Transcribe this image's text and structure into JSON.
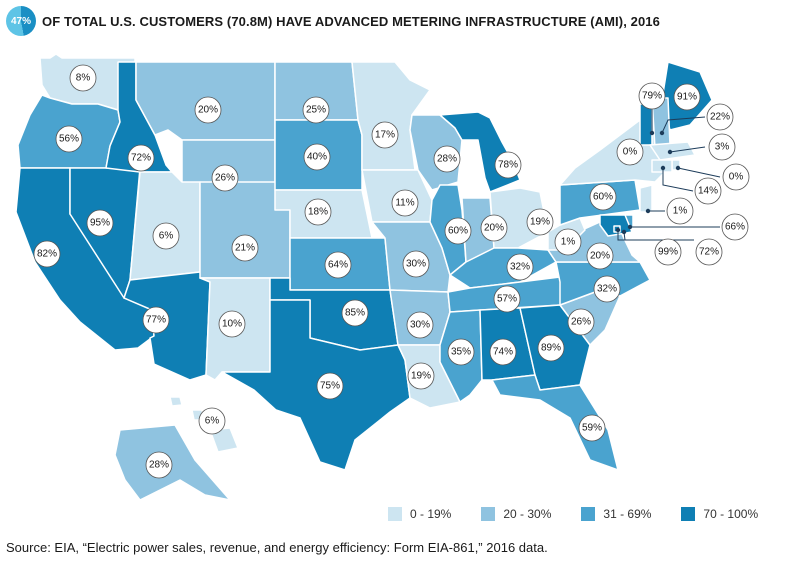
{
  "header": {
    "badge_value": "47%",
    "title": "OF TOTAL U.S. CUSTOMERS (70.8M) HAVE ADVANCED METERING INFRASTRUCTURE (AMI), 2016"
  },
  "colors": {
    "bin_0_19": "#cde5f1",
    "bin_20_30": "#8fc3e0",
    "bin_31_69": "#4aa3cf",
    "bin_70_100": "#0f7fb4",
    "border": "#ffffff",
    "bubble_stroke": "#555555"
  },
  "legend": [
    {
      "label": "0 - 19%",
      "color": "#cde5f1"
    },
    {
      "label": "20 - 30%",
      "color": "#8fc3e0"
    },
    {
      "label": "31 - 69%",
      "color": "#4aa3cf"
    },
    {
      "label": "70 - 100%",
      "color": "#0f7fb4"
    }
  ],
  "source": "Source: EIA, “Electric power sales, revenue, and energy efficiency: Form EIA-861,” 2016 data.",
  "states": [
    {
      "id": "WA",
      "value": 8,
      "label": "8%"
    },
    {
      "id": "OR",
      "value": 56,
      "label": "56%"
    },
    {
      "id": "CA",
      "value": 82,
      "label": "82%"
    },
    {
      "id": "NV",
      "value": 95,
      "label": "95%"
    },
    {
      "id": "ID",
      "value": 72,
      "label": "72%"
    },
    {
      "id": "MT",
      "value": 20,
      "label": "20%"
    },
    {
      "id": "WY",
      "value": 26,
      "label": "26%"
    },
    {
      "id": "UT",
      "value": 6,
      "label": "6%"
    },
    {
      "id": "AZ",
      "value": 77,
      "label": "77%"
    },
    {
      "id": "CO",
      "value": 21,
      "label": "21%"
    },
    {
      "id": "NM",
      "value": 10,
      "label": "10%"
    },
    {
      "id": "ND",
      "value": 25,
      "label": "25%"
    },
    {
      "id": "SD",
      "value": 40,
      "label": "40%"
    },
    {
      "id": "NE",
      "value": 18,
      "label": "18%"
    },
    {
      "id": "KS",
      "value": 64,
      "label": "64%"
    },
    {
      "id": "OK",
      "value": 85,
      "label": "85%"
    },
    {
      "id": "TX",
      "value": 75,
      "label": "75%"
    },
    {
      "id": "MN",
      "value": 17,
      "label": "17%"
    },
    {
      "id": "IA",
      "value": 11,
      "label": "11%"
    },
    {
      "id": "MO",
      "value": 30,
      "label": "30%"
    },
    {
      "id": "AR",
      "value": 30,
      "label": "30%"
    },
    {
      "id": "LA",
      "value": 19,
      "label": "19%"
    },
    {
      "id": "WI",
      "value": 28,
      "label": "28%"
    },
    {
      "id": "IL",
      "value": 60,
      "label": "60%"
    },
    {
      "id": "MI",
      "value": 78,
      "label": "78%"
    },
    {
      "id": "IN",
      "value": 20,
      "label": "20%"
    },
    {
      "id": "OH",
      "value": 19,
      "label": "19%"
    },
    {
      "id": "KY",
      "value": 32,
      "label": "32%"
    },
    {
      "id": "TN",
      "value": 57,
      "label": "57%"
    },
    {
      "id": "MS",
      "value": 35,
      "label": "35%"
    },
    {
      "id": "AL",
      "value": 74,
      "label": "74%"
    },
    {
      "id": "GA",
      "value": 89,
      "label": "89%"
    },
    {
      "id": "FL",
      "value": 59,
      "label": "59%"
    },
    {
      "id": "SC",
      "value": 26,
      "label": "26%"
    },
    {
      "id": "NC",
      "value": 32,
      "label": "32%"
    },
    {
      "id": "VA",
      "value": 20,
      "label": "20%"
    },
    {
      "id": "WV",
      "value": 1,
      "label": "1%"
    },
    {
      "id": "PA",
      "value": 60,
      "label": "60%"
    },
    {
      "id": "NY",
      "value": 0,
      "label": "0%"
    },
    {
      "id": "VT",
      "value": 79,
      "label": "79%"
    },
    {
      "id": "ME",
      "value": 91,
      "label": "91%"
    },
    {
      "id": "NH",
      "value": 22,
      "label": "22%"
    },
    {
      "id": "MA",
      "value": 3,
      "label": "3%"
    },
    {
      "id": "RI",
      "value": 0,
      "label": "0%"
    },
    {
      "id": "CT",
      "value": 14,
      "label": "14%"
    },
    {
      "id": "NJ",
      "value": 1,
      "label": "1%"
    },
    {
      "id": "DE",
      "value": 66,
      "label": "66%"
    },
    {
      "id": "MD",
      "value": 72,
      "label": "72%"
    },
    {
      "id": "DC",
      "value": 99,
      "label": "99%"
    },
    {
      "id": "AK",
      "value": 28,
      "label": "28%"
    },
    {
      "id": "HI",
      "value": 6,
      "label": "6%"
    }
  ]
}
